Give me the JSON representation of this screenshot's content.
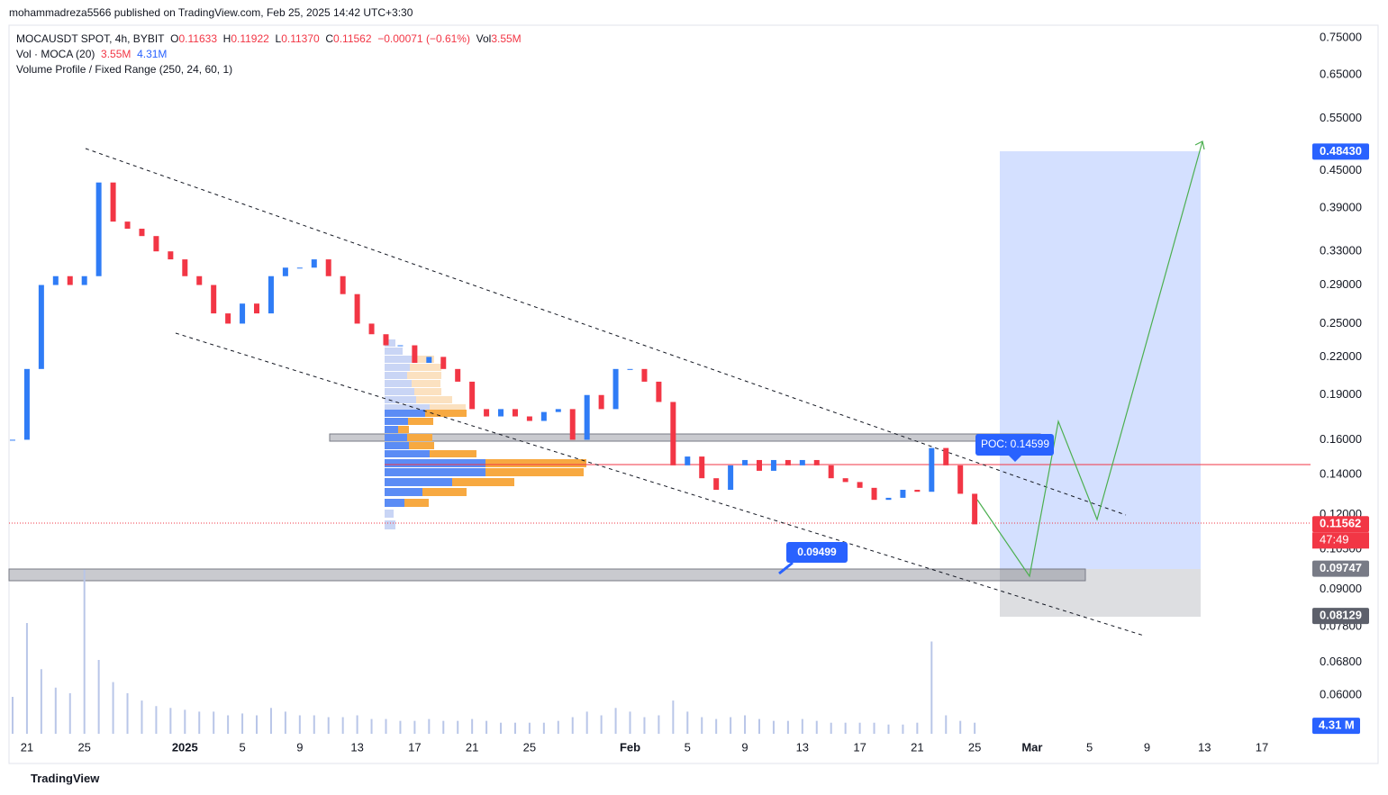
{
  "header": "mohammadreza5566 published on TradingView.com, Feb 25, 2025 14:42 UTC+3:30",
  "legend": {
    "symbol": "MOCAUSDT SPOT, 4h, BYBIT",
    "ohlc": [
      {
        "key": "O",
        "value": "0.11633"
      },
      {
        "key": "H",
        "value": "0.11922"
      },
      {
        "key": "L",
        "value": "0.11370"
      },
      {
        "key": "C",
        "value": "0.11562"
      }
    ],
    "change": "−0.00071 (−0.61%)",
    "vol_key": "Vol",
    "vol_value": "3.55M",
    "volume_indicator": "Vol · MOCA (20)",
    "volume_values": [
      "3.55M",
      "4.31M"
    ],
    "profile": "Volume Profile / Fixed Range (250, 24, 60, 1)"
  },
  "chart_data": {
    "type": "candlestick",
    "log_scale": true,
    "grid": false,
    "up_color": "#2f7cf6",
    "down_color": "#f23645",
    "volume_color": "#b9c6e8",
    "x": [
      -1,
      0,
      1,
      2,
      3,
      4,
      5,
      6,
      7,
      8,
      9,
      10,
      11,
      12,
      13,
      14,
      15,
      16,
      17,
      18,
      19,
      20,
      21,
      22,
      23,
      24,
      25,
      26,
      27,
      28,
      29,
      30,
      31,
      32,
      33,
      34,
      35,
      36,
      37,
      38,
      39,
      40,
      41,
      42,
      43,
      44,
      45,
      46,
      47,
      48,
      49,
      50,
      51,
      52,
      53,
      54,
      55,
      56,
      57,
      58,
      59,
      60,
      61,
      62,
      63,
      64,
      65,
      66
    ],
    "values": [
      0.16,
      0.21,
      0.29,
      0.3,
      0.29,
      0.3,
      0.43,
      0.37,
      0.36,
      0.35,
      0.33,
      0.32,
      0.3,
      0.29,
      0.26,
      0.25,
      0.27,
      0.26,
      0.3,
      0.31,
      0.31,
      0.32,
      0.3,
      0.28,
      0.25,
      0.24,
      0.23,
      0.23,
      0.215,
      0.22,
      0.21,
      0.2,
      0.18,
      0.175,
      0.18,
      0.175,
      0.172,
      0.178,
      0.18,
      0.16,
      0.19,
      0.18,
      0.21,
      0.21,
      0.2,
      0.185,
      0.145,
      0.15,
      0.138,
      0.132,
      0.145,
      0.148,
      0.142,
      0.148,
      0.145,
      0.148,
      0.145,
      0.138,
      0.136,
      0.133,
      0.127,
      0.128,
      0.132,
      0.131,
      0.155,
      0.145,
      0.13,
      0.1156
    ],
    "volume": [
      20,
      60,
      35,
      25,
      22,
      89,
      40,
      28,
      22,
      18,
      15,
      14,
      13,
      12,
      12,
      10,
      11,
      10,
      14,
      12,
      10,
      10,
      9,
      9,
      10,
      8,
      8,
      7,
      7,
      8,
      7,
      7,
      8,
      7,
      6,
      6,
      6,
      6,
      7,
      9,
      12,
      10,
      14,
      12,
      9,
      10,
      18,
      12,
      9,
      8,
      9,
      10,
      8,
      7,
      7,
      8,
      7,
      6,
      6,
      6,
      6,
      5,
      5,
      6,
      50,
      10,
      7,
      6
    ],
    "vlim": [
      0,
      100
    ],
    "xlim": [
      -1.25,
      89.2
    ],
    "xticks": [
      {
        "value": 0,
        "label": "21"
      },
      {
        "value": 4,
        "label": "25"
      },
      {
        "value": 11,
        "label": "2025"
      },
      {
        "value": 15,
        "label": "5"
      },
      {
        "value": 19,
        "label": "9"
      },
      {
        "value": 23,
        "label": "13"
      },
      {
        "value": 27,
        "label": "17"
      },
      {
        "value": 31,
        "label": "21"
      },
      {
        "value": 35,
        "label": "25"
      },
      {
        "value": 42,
        "label": "Feb"
      },
      {
        "value": 46,
        "label": "5"
      },
      {
        "value": 50,
        "label": "9"
      },
      {
        "value": 54,
        "label": "13"
      },
      {
        "value": 58,
        "label": "17"
      },
      {
        "value": 62,
        "label": "21"
      },
      {
        "value": 66,
        "label": "25"
      },
      {
        "value": 70,
        "label": "Mar"
      },
      {
        "value": 74,
        "label": "5"
      },
      {
        "value": 78,
        "label": "9"
      },
      {
        "value": 82,
        "label": "13"
      },
      {
        "value": 86,
        "label": "17"
      }
    ],
    "ylim": [
      0.0508,
      0.787
    ],
    "yticks": [
      {
        "value": 0.75,
        "label": "0.75000"
      },
      {
        "value": 0.65,
        "label": "0.65000"
      },
      {
        "value": 0.55,
        "label": "0.55000"
      },
      {
        "value": 0.45,
        "label": "0.45000"
      },
      {
        "value": 0.39,
        "label": "0.39000"
      },
      {
        "value": 0.33,
        "label": "0.33000"
      },
      {
        "value": 0.29,
        "label": "0.29000"
      },
      {
        "value": 0.25,
        "label": "0.25000"
      },
      {
        "value": 0.22,
        "label": "0.22000"
      },
      {
        "value": 0.19,
        "label": "0.19000"
      },
      {
        "value": 0.16,
        "label": "0.16000"
      },
      {
        "value": 0.14,
        "label": "0.14000"
      },
      {
        "value": 0.12,
        "label": "0.12000"
      },
      {
        "value": 0.105,
        "label": "0.10500"
      },
      {
        "value": 0.09,
        "label": "0.09000"
      },
      {
        "value": 0.078,
        "label": "0.07800"
      },
      {
        "value": 0.068,
        "label": "0.06800"
      },
      {
        "value": 0.06,
        "label": "0.06000"
      }
    ],
    "price_tags": [
      {
        "value": 0.4843,
        "label": "0.48430",
        "color": "#2962ff"
      },
      {
        "value": 0.11562,
        "label": "0.11562",
        "color": "#f23645"
      },
      {
        "value": 0.09747,
        "label": "0.09747",
        "color": "#787b86"
      },
      {
        "value": 0.08129,
        "label": "0.08129",
        "color": "#5d606b"
      }
    ],
    "countdown": "47:49",
    "volume_tag": {
      "value": 4.31,
      "label": "4.31 M",
      "color": "#2962ff"
    },
    "annotations": [
      "POC: 0.14599",
      "0.09499"
    ]
  },
  "footer": "TradingView"
}
